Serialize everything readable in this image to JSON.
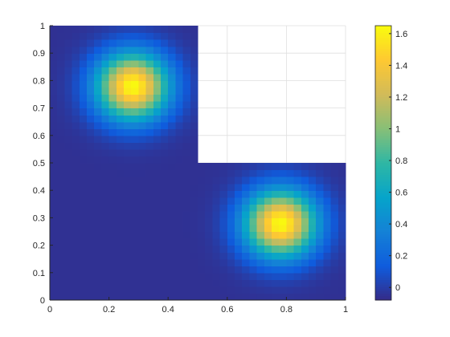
{
  "chart_data": {
    "type": "heatmap",
    "title": "",
    "xlabel": "",
    "ylabel": "",
    "xlim": [
      0,
      1
    ],
    "ylim": [
      0,
      1
    ],
    "x_ticks": [
      "0",
      "0.2",
      "0.4",
      "0.6",
      "0.8",
      "1"
    ],
    "y_ticks": [
      "0",
      "0.1",
      "0.2",
      "0.3",
      "0.4",
      "0.5",
      "0.6",
      "0.7",
      "0.8",
      "0.9",
      "1"
    ],
    "grid": true,
    "domain_shape": "L-shape: region x in [0.5, 1] and y in [0.5, 1] is empty",
    "peaks": [
      {
        "x": 0.28,
        "y": 0.78,
        "value": 1.65
      },
      {
        "x": 0.78,
        "y": 0.28,
        "value": 1.65
      }
    ],
    "colorbar": {
      "min": -0.08,
      "max": 1.65,
      "ticks": [
        "0",
        "0.2",
        "0.4",
        "0.6",
        "0.8",
        "1",
        "1.2",
        "1.4",
        "1.6"
      ],
      "colormap": "parula"
    },
    "colors": {
      "parula": [
        "#352a87",
        "#0f5cdd",
        "#1481d6",
        "#06a4ca",
        "#2eb7a4",
        "#87bf77",
        "#d1bb59",
        "#fec832",
        "#f9fb0e"
      ],
      "grid": "#dfdfdf",
      "axis": "#262626"
    }
  }
}
